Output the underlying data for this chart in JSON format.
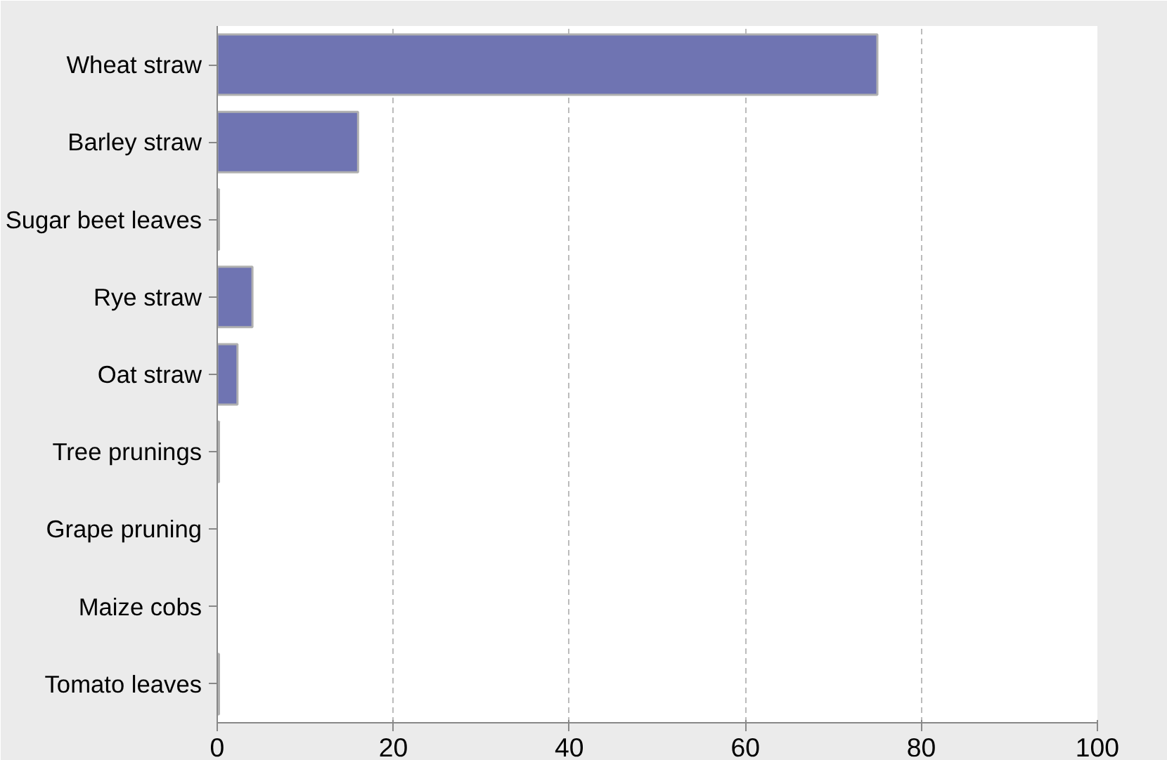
{
  "chart_data": {
    "type": "bar",
    "orientation": "horizontal",
    "categories": [
      "Wheat straw",
      "Barley straw",
      "Sugar beet leaves",
      "Rye straw",
      "Oat straw",
      "Tree prunings",
      "Grape pruning",
      "Maize cobs",
      "Tomato leaves"
    ],
    "values": [
      75,
      16,
      0.2,
      4,
      2.3,
      0.2,
      0,
      0,
      0.2
    ],
    "color": "#6f74b2",
    "xlim": [
      0,
      100
    ],
    "xticks": [
      0,
      20,
      40,
      60,
      80,
      100
    ],
    "grid": "x"
  }
}
